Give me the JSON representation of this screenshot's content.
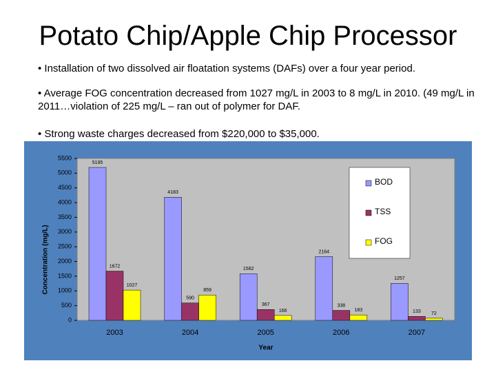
{
  "slide": {
    "title": "Potato Chip/Apple Chip Processor",
    "bullets": [
      "• Installation of two dissolved air floatation systems (DAFs) over a four year period.",
      "• Average FOG concentration decreased from 1027 mg/L in 2003  to 8 mg/L in 2010. (49 mg/L in 2011…violation of 225 mg/L – ran out of polymer for DAF.",
      "• Strong waste charges decreased from $220,000 to $35,000."
    ]
  },
  "chart_data": {
    "type": "bar",
    "x_label": "Year",
    "y_label": "Concentration (mg/L)",
    "categories": [
      "2003",
      "2004",
      "2005",
      "2006",
      "2007"
    ],
    "series": [
      {
        "name": "BOD",
        "color": "#9999ff",
        "values": [
          5195,
          4183,
          1582,
          2164,
          1257
        ]
      },
      {
        "name": "TSS",
        "color": "#993366",
        "values": [
          1672,
          590,
          367,
          338,
          133
        ]
      },
      {
        "name": "FOG",
        "color": "#ffff00",
        "values": [
          1027,
          859,
          166,
          183,
          72
        ]
      }
    ],
    "ylim": [
      0,
      5500
    ],
    "yticks": [
      0,
      500,
      1000,
      1500,
      2000,
      2500,
      3000,
      3500,
      4000,
      4500,
      5000,
      5500
    ],
    "legend": "right",
    "data_labels": true
  }
}
